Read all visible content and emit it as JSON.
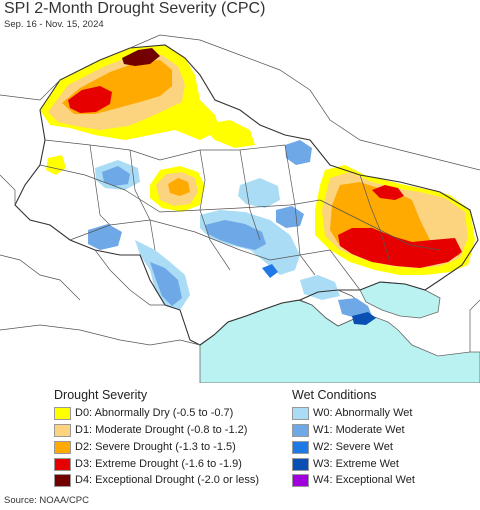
{
  "header": {
    "title": "SPI 2-Month Drought Severity (CPC)",
    "subtitle": "Sep. 16 - Nov. 15, 2024"
  },
  "legend": {
    "drought_title": "Drought Severity",
    "wet_title": "Wet Conditions",
    "drought_items": [
      {
        "label": "D0: Abnormally Dry (-0.5 to -0.7)",
        "color": "#ffff00"
      },
      {
        "label": "D1: Moderate Drought (-0.8 to -1.2)",
        "color": "#fcd37f"
      },
      {
        "label": "D2: Severe Drought (-1.3 to -1.5)",
        "color": "#ffaa00"
      },
      {
        "label": "D3: Extreme Drought (-1.6 to -1.9)",
        "color": "#e60000"
      },
      {
        "label": "D4: Exceptional Drought (-2.0 or less)",
        "color": "#730000"
      }
    ],
    "wet_items": [
      {
        "label": "W0: Abnormally Wet",
        "color": "#aadcf5"
      },
      {
        "label": "W1: Moderate Wet",
        "color": "#6fa8e6"
      },
      {
        "label": "W2: Severe Wet",
        "color": "#1e78e6"
      },
      {
        "label": "W3: Extreme Wet",
        "color": "#0a50b4"
      },
      {
        "label": "W4: Exceptional Wet",
        "color": "#a000dc"
      }
    ]
  },
  "map": {
    "sea_color": "#b9f2f0",
    "land_color": "#ffffff",
    "border_color": "#555555"
  },
  "footer": {
    "source": "Source: NOAA/CPC"
  }
}
